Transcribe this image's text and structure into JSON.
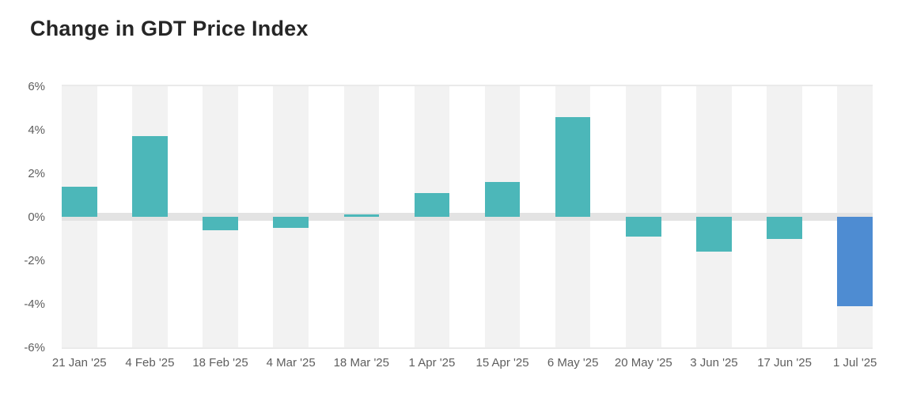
{
  "header": {
    "title": "Change in GDT Price Index"
  },
  "chart_data": {
    "type": "bar",
    "title": "Change in GDT Price Index",
    "categories": [
      "21 Jan '25",
      "4 Feb '25",
      "18 Feb '25",
      "4 Mar '25",
      "18 Mar '25",
      "1 Apr '25",
      "15 Apr '25",
      "6 May '25",
      "20 May '25",
      "3 Jun '25",
      "17 Jun '25",
      "1 Jul '25"
    ],
    "values": [
      1.4,
      3.7,
      -0.6,
      -0.5,
      0.1,
      1.1,
      1.6,
      4.6,
      -0.9,
      -1.6,
      -1.0,
      -4.1
    ],
    "unit": "%",
    "xlabel": "",
    "ylabel": "",
    "ylim": [
      -6,
      6
    ],
    "y_ticks": [
      "6%",
      "4%",
      "2%",
      "0%",
      "-2%",
      "-4%",
      "-6%"
    ],
    "y_tick_values": [
      6,
      4,
      2,
      0,
      -2,
      -4,
      -6
    ],
    "legend": "none",
    "grid": "no horizontal gridlines; thick zero band; alternating full-height column stripes behind each bar; light top and bottom plot borders",
    "highlight_last_bar": true,
    "colors": {
      "bar": "#4cb7b9",
      "last_bar": "#4e8cd2",
      "column_stripe": "#f2f2f2",
      "zero_band": "#e3e3e3",
      "plot_border": "#eaeaea",
      "axis_label": "#5e5e5e",
      "title": "#262626",
      "background": "#ffffff"
    }
  }
}
